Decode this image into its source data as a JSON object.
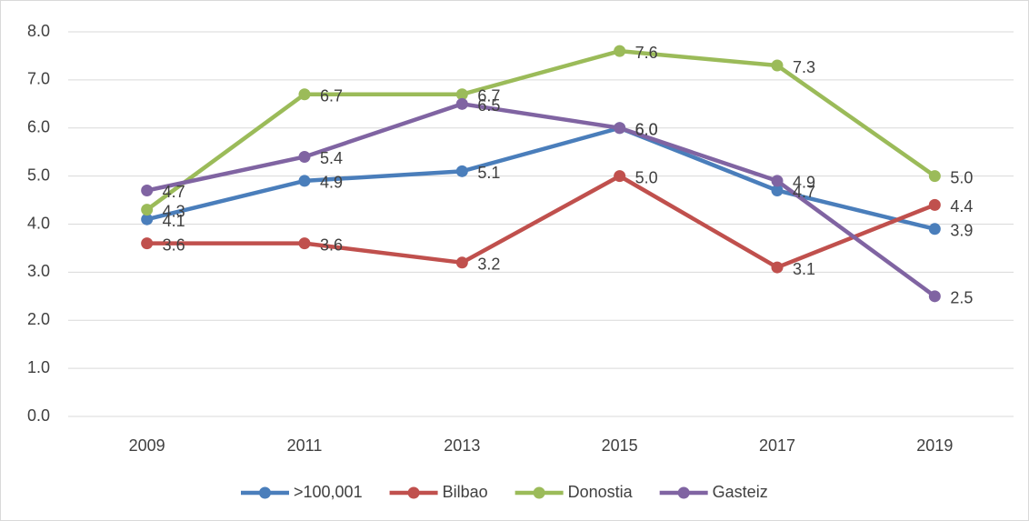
{
  "chart_data": {
    "type": "line",
    "categories": [
      "2009",
      "2011",
      "2013",
      "2015",
      "2017",
      "2019"
    ],
    "series": [
      {
        "name": ">100,001",
        "color": "#4a7ebb",
        "values": [
          4.1,
          4.9,
          5.1,
          6.0,
          4.7,
          3.9
        ],
        "value_labels": [
          "4.1",
          "4.9",
          "5.1",
          "6.0",
          "4.7",
          "3.9"
        ]
      },
      {
        "name": "Bilbao",
        "color": "#c0504d",
        "values": [
          3.6,
          3.6,
          3.2,
          5.0,
          3.1,
          4.4
        ],
        "value_labels": [
          "3.6",
          "3.6",
          "3.2",
          "5.0",
          "3.1",
          "4.4"
        ]
      },
      {
        "name": "Donostia",
        "color": "#9bbb59",
        "values": [
          4.3,
          6.7,
          6.7,
          7.6,
          7.3,
          5.0
        ],
        "value_labels": [
          "4.3",
          "6.7",
          "6.7",
          "7.6",
          "7.3",
          "5.0"
        ]
      },
      {
        "name": "Gasteiz",
        "color": "#8064a2",
        "values": [
          4.7,
          5.4,
          6.5,
          6.0,
          4.9,
          2.5
        ],
        "value_labels": [
          "4.7",
          "5.4",
          "6.5",
          "6.0",
          "4.9",
          "2.5"
        ]
      }
    ],
    "ylim": [
      0,
      8
    ],
    "yticks": [
      {
        "value": 0,
        "label": "0.0"
      },
      {
        "value": 1,
        "label": "1.0"
      },
      {
        "value": 2,
        "label": "2.0"
      },
      {
        "value": 3,
        "label": "3.0"
      },
      {
        "value": 4,
        "label": "4.0"
      },
      {
        "value": 5,
        "label": "5.0"
      },
      {
        "value": 6,
        "label": "6.0"
      },
      {
        "value": 7,
        "label": "7.0"
      },
      {
        "value": 8,
        "label": "8.0"
      }
    ],
    "grid": true,
    "legend": "bottom"
  }
}
